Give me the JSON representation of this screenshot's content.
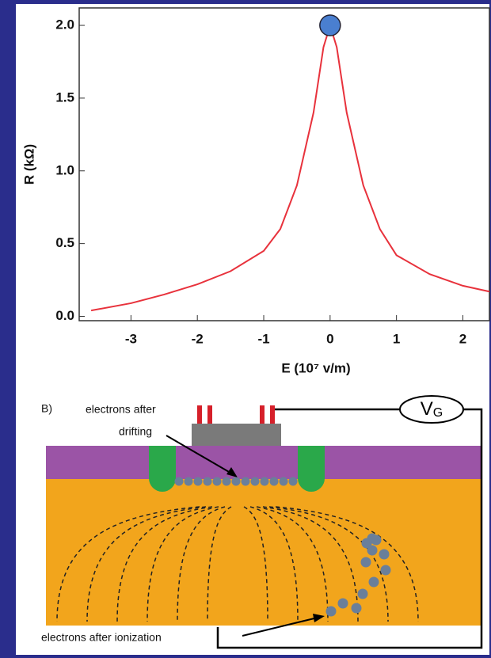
{
  "chart_data": {
    "type": "line",
    "xlabel": "E (10⁷ v/m)",
    "ylabel": "R (kΩ)",
    "x": [
      -3.6,
      -3,
      -2.5,
      -2,
      -1.5,
      -1,
      -0.75,
      -0.5,
      -0.25,
      -0.1,
      0,
      0.1,
      0.25,
      0.5,
      0.75,
      1,
      1.5,
      2,
      2.4
    ],
    "series": [
      {
        "color": "#e8323c",
        "values": [
          0.04,
          0.09,
          0.15,
          0.22,
          0.31,
          0.45,
          0.6,
          0.9,
          1.4,
          1.85,
          2.0,
          1.85,
          1.4,
          0.9,
          0.6,
          0.42,
          0.29,
          0.21,
          0.17
        ]
      }
    ],
    "highlight": {
      "x": 0,
      "y": 2.0,
      "color": "#4a7fd0"
    },
    "xlim": [
      -3.78,
      2.4
    ],
    "ylim": [
      -0.03,
      2.12
    ],
    "xticks": [
      -3,
      -2,
      -1,
      0,
      1,
      2
    ],
    "yticks": [
      {
        "value": 0,
        "label": "0.0"
      },
      {
        "value": 0.5,
        "label": "0.5"
      },
      {
        "value": 1,
        "label": "1.0"
      },
      {
        "value": 1.5,
        "label": "1.5"
      },
      {
        "value": 2,
        "label": "2.0"
      }
    ]
  },
  "diagram": {
    "panel_label": "B)",
    "drift_label": [
      "electrons after",
      "drifting"
    ],
    "source": {
      "main": "V",
      "sub": "G"
    },
    "ionization_label": "electrons after ionization"
  }
}
